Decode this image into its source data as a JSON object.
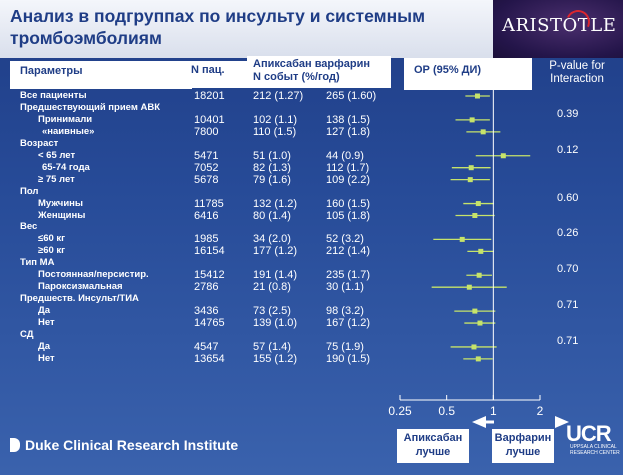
{
  "title": "Анализ в подгруппах по инсульту и системным тромбоэмболиям",
  "logo": "ARISTOTLE",
  "headers": {
    "params": "Параметры",
    "n": "N пац.",
    "events_line1": "Апиксабан варфарин",
    "events_line2": "N событ (%/год)",
    "or": "ОР (95% ДИ)",
    "pvalue": "P-value for Interaction"
  },
  "chart_data": {
    "type": "forest",
    "x_axis": {
      "scale": "log",
      "ticks": [
        0.25,
        0.5,
        1,
        2
      ],
      "tick_labels": [
        "0.25",
        "0.5",
        "1",
        "2"
      ],
      "xlim": [
        0.25,
        2
      ],
      "reference_line": 1
    },
    "rows": [
      {
        "label": "Все пациенты",
        "indent": 0,
        "n": "18201",
        "apix": "212 (1.27)",
        "warf": "265 (1.60)",
        "hr": 0.79,
        "lo": 0.66,
        "hi": 0.95
      },
      {
        "label": "Предшествующий прием АВК",
        "indent": 0
      },
      {
        "label": "Принимали",
        "indent": 2,
        "n": "10401",
        "apix": "102 (1.1)",
        "warf": "138 (1.5)",
        "hr": 0.73,
        "lo": 0.57,
        "hi": 0.95
      },
      {
        "label": "«наивные»",
        "indent": 3,
        "n": "7800",
        "apix": "110 (1.5)",
        "warf": "127 (1.8)",
        "hr": 0.86,
        "lo": 0.67,
        "hi": 1.11
      },
      {
        "label": "Возраст",
        "indent": 0
      },
      {
        "label": "< 65 лет",
        "indent": 2,
        "n": "5471",
        "apix": "51 (1.0)",
        "warf": "44 (0.9)",
        "hr": 1.16,
        "lo": 0.77,
        "hi": 1.73
      },
      {
        "label": "65-74 года",
        "indent": 3,
        "n": "7052",
        "apix": "82 (1.3)",
        "warf": "112 (1.7)",
        "hr": 0.72,
        "lo": 0.54,
        "hi": 0.96
      },
      {
        "label": "≥ 75 лет",
        "indent": 2,
        "n": "5678",
        "apix": "79 (1.6)",
        "warf": "109 (2.2)",
        "hr": 0.71,
        "lo": 0.53,
        "hi": 0.95
      },
      {
        "label": "Пол",
        "indent": 0
      },
      {
        "label": "Мужчины",
        "indent": 2,
        "n": "11785",
        "apix": "132 (1.2)",
        "warf": "160 (1.5)",
        "hr": 0.8,
        "lo": 0.64,
        "hi": 1.01
      },
      {
        "label": "Женщины",
        "indent": 2,
        "n": "6416",
        "apix": "80 (1.4)",
        "warf": "105 (1.8)",
        "hr": 0.76,
        "lo": 0.57,
        "hi": 1.02
      },
      {
        "label": "Вес",
        "indent": 0
      },
      {
        "label": "≤60 кг",
        "indent": 2,
        "n": "1985",
        "apix": "34 (2.0)",
        "warf": "52 (3.2)",
        "hr": 0.63,
        "lo": 0.41,
        "hi": 0.97
      },
      {
        "label": "≥60 кг",
        "indent": 2,
        "n": "16154",
        "apix": "177 (1.2)",
        "warf": "212 (1.4)",
        "hr": 0.83,
        "lo": 0.68,
        "hi": 1.01
      },
      {
        "label": "Тип МА",
        "indent": 0
      },
      {
        "label": "Постоянная/персистир.",
        "indent": 2,
        "n": "15412",
        "apix": "191 (1.4)",
        "warf": "235 (1.7)",
        "hr": 0.81,
        "lo": 0.67,
        "hi": 0.98
      },
      {
        "label": "Пароксизмальная",
        "indent": 2,
        "n": "2786",
        "apix": "21 (0.8)",
        "warf": "30 (1.1)",
        "hr": 0.7,
        "lo": 0.4,
        "hi": 1.22
      },
      {
        "label": "Предшеств. Инсульт/ТИА",
        "indent": 0
      },
      {
        "label": "Да",
        "indent": 2,
        "n": "3436",
        "apix": "73 (2.5)",
        "warf": "98 (3.2)",
        "hr": 0.76,
        "lo": 0.56,
        "hi": 1.03
      },
      {
        "label": "Нет",
        "indent": 2,
        "n": "14765",
        "apix": "139 (1.0)",
        "warf": "167 (1.2)",
        "hr": 0.82,
        "lo": 0.65,
        "hi": 1.03
      },
      {
        "label": "СД",
        "indent": 0
      },
      {
        "label": "Да",
        "indent": 2,
        "n": "4547",
        "apix": "57 (1.4)",
        "warf": "75 (1.9)",
        "hr": 0.75,
        "lo": 0.53,
        "hi": 1.05
      },
      {
        "label": "Нет",
        "indent": 2,
        "n": "13654",
        "apix": "155 (1.2)",
        "warf": "190 (1.5)",
        "hr": 0.8,
        "lo": 0.64,
        "hi": 0.99
      }
    ],
    "pvalues": [
      {
        "after_row": 1,
        "value": "0.39"
      },
      {
        "after_row": 4,
        "value": "0.12"
      },
      {
        "after_row": 8,
        "value": "0.60"
      },
      {
        "after_row": 11,
        "value": "0.26"
      },
      {
        "after_row": 14,
        "value": "0.70"
      },
      {
        "after_row": 17,
        "value": "0.71"
      },
      {
        "after_row": 20,
        "value": "0.71"
      }
    ],
    "favors_left": "Апиксабан лучше",
    "favors_right": "Варфарин лучше",
    "colors": {
      "marker": "#c6e36a",
      "ci": "#c6e36a",
      "axis": "#ffffff"
    }
  },
  "footer": {
    "duke": "Duke Clinical Research Institute",
    "ucr": "UCR",
    "ucr_sub": "UPPSALA CLINICAL RESEARCH CENTER"
  }
}
